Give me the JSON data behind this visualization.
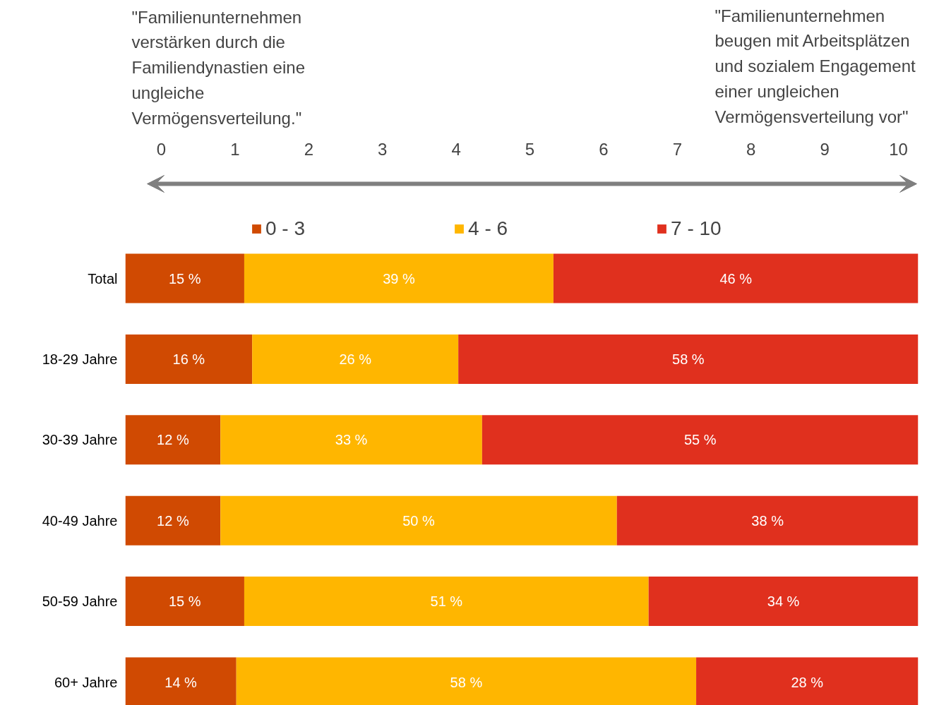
{
  "chart_data": {
    "type": "bar",
    "orientation": "horizontal",
    "stacked": true,
    "categories": [
      "Total",
      "18-29 Jahre",
      "30-39 Jahre",
      "40-49 Jahre",
      "50-59 Jahre",
      "60+ Jahre"
    ],
    "series": [
      {
        "name": "0 - 3",
        "color": "#d04a02",
        "values": [
          15,
          16,
          12,
          12,
          15,
          14
        ],
        "value_labels": [
          "15 %",
          "16 %",
          "12 %",
          "12 %",
          "15 %",
          "14 %"
        ]
      },
      {
        "name": "4 - 6",
        "color": "#ffb600",
        "values": [
          39,
          26,
          33,
          50,
          51,
          58
        ],
        "value_labels": [
          "39 %",
          "26 %",
          "33 %",
          "50 %",
          "51 %",
          "58 %"
        ]
      },
      {
        "name": "7 - 10",
        "color": "#e0301e",
        "values": [
          46,
          58,
          55,
          38,
          34,
          28
        ],
        "value_labels": [
          "46 %",
          "58 %",
          "55 %",
          "38 %",
          "34 %",
          "28 %"
        ]
      }
    ],
    "legend": "top",
    "annotations": [
      "\"Familienunternehmen verstärken durch die Familiendynastien eine ungleiche Vermögensverteilung.\"",
      "\"Familienunternehmen beugen mit Arbeitsplätzen und sozialem Engagement einer ungleichen Vermögensverteilung vor\"",
      "0",
      "1",
      "2",
      "3",
      "4",
      "5",
      "6",
      "7",
      "8",
      "9",
      "10"
    ]
  }
}
